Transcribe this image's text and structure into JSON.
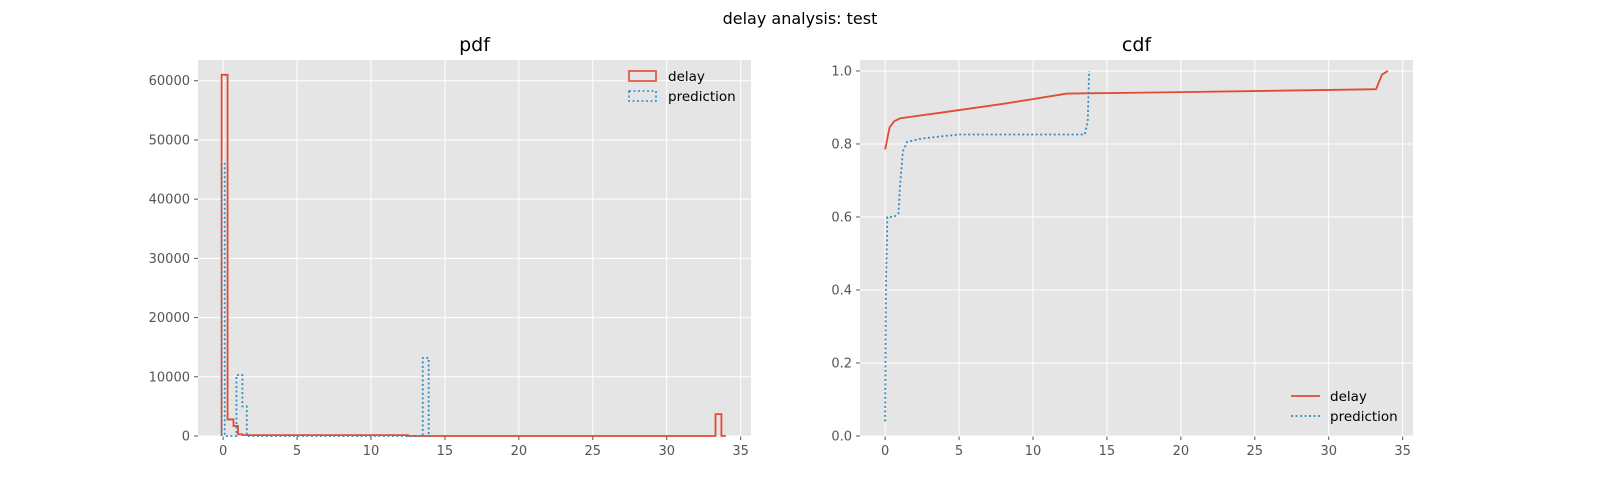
{
  "figure": {
    "suptitle": "delay analysis: test"
  },
  "chart_data": [
    {
      "type": "histogram",
      "title": "pdf",
      "xlim": [
        -1.7,
        35.7
      ],
      "ylim": [
        0,
        63500
      ],
      "xticks": [
        0,
        5,
        10,
        15,
        20,
        25,
        30,
        35
      ],
      "yticks": [
        0,
        10000,
        20000,
        30000,
        40000,
        50000,
        60000
      ],
      "grid": true,
      "legend": "top-right",
      "series": [
        {
          "name": "delay",
          "color": "#E24A33",
          "style": "solid",
          "bins": [
            {
              "x0": -0.1,
              "x1": 0.3,
              "count": 61000
            },
            {
              "x0": 0.3,
              "x1": 0.7,
              "count": 2800
            },
            {
              "x0": 0.7,
              "x1": 1.0,
              "count": 1700
            },
            {
              "x0": 1.0,
              "x1": 1.3,
              "count": 300
            },
            {
              "x0": 1.3,
              "x1": 12.5,
              "count": 150
            },
            {
              "x0": 12.5,
              "x1": 33.3,
              "count": 0
            },
            {
              "x0": 33.3,
              "x1": 33.7,
              "count": 3700
            },
            {
              "x0": 33.7,
              "x1": 34.0,
              "count": 0
            }
          ]
        },
        {
          "name": "prediction",
          "color": "#348ABD",
          "style": "dotted",
          "bins": [
            {
              "x0": -0.1,
              "x1": 0.1,
              "count": 46000
            },
            {
              "x0": 0.1,
              "x1": 0.9,
              "count": 0
            },
            {
              "x0": 0.9,
              "x1": 1.3,
              "count": 10300
            },
            {
              "x0": 1.3,
              "x1": 1.6,
              "count": 5000
            },
            {
              "x0": 1.6,
              "x1": 13.5,
              "count": 0
            },
            {
              "x0": 13.5,
              "x1": 13.9,
              "count": 13200
            },
            {
              "x0": 13.9,
              "x1": 14.1,
              "count": 0
            }
          ]
        }
      ]
    },
    {
      "type": "line",
      "title": "cdf",
      "xlim": [
        -1.7,
        35.7
      ],
      "ylim": [
        0,
        1.03
      ],
      "xticks": [
        0,
        5,
        10,
        15,
        20,
        25,
        30,
        35
      ],
      "yticks": [
        0.0,
        0.2,
        0.4,
        0.6,
        0.8,
        1.0
      ],
      "grid": true,
      "legend": "bottom-right",
      "series": [
        {
          "name": "delay",
          "color": "#E24A33",
          "style": "solid",
          "x": [
            0,
            0.3,
            0.6,
            1.0,
            2.0,
            4.0,
            8.0,
            12.3,
            20.0,
            30.0,
            33.2,
            33.6,
            34.0
          ],
          "y": [
            0.785,
            0.845,
            0.862,
            0.87,
            0.876,
            0.887,
            0.91,
            0.938,
            0.942,
            0.948,
            0.95,
            0.99,
            1.0
          ]
        },
        {
          "name": "prediction",
          "color": "#348ABD",
          "style": "dotted",
          "x": [
            0,
            0.05,
            0.15,
            0.4,
            0.6,
            0.9,
            1.0,
            1.2,
            1.5,
            2.5,
            5.0,
            13.5,
            13.7,
            13.8
          ],
          "y": [
            0.04,
            0.4,
            0.6,
            0.6,
            0.6,
            0.61,
            0.68,
            0.78,
            0.806,
            0.815,
            0.826,
            0.826,
            0.86,
            1.0
          ]
        }
      ]
    }
  ]
}
